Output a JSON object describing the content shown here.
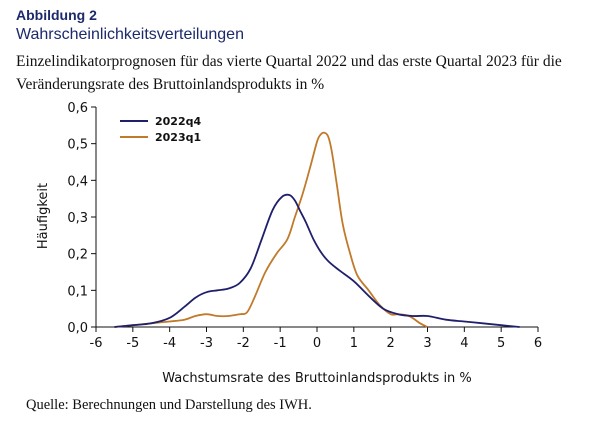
{
  "figure": {
    "label": "Abbildung 2",
    "title": "Wahrscheinlichkeitsverteilungen",
    "subtitle": "Einzelindikatorprognosen für das vierte Quartal 2022 und das erste Quartal 2023 für die Veränderungsrate des Bruttoinlandsprodukts in %",
    "source": "Quelle: Berechnungen und Darstellung des IWH."
  },
  "chart_data": {
    "type": "line",
    "title": "",
    "xlabel": "Wachstumsrate des Bruttoinlandsprodukts in %",
    "ylabel": "Häufigkeit",
    "xlim": [
      -6,
      6
    ],
    "ylim": [
      0,
      0.6
    ],
    "x_ticks": [
      "-6",
      "-5",
      "-4",
      "-3",
      "-2",
      "-1",
      "0",
      "1",
      "2",
      "3",
      "4",
      "5",
      "6"
    ],
    "y_ticks": [
      "0,0",
      "0,1",
      "0,2",
      "0,3",
      "0,4",
      "0,5",
      "0,6"
    ],
    "legend_position": "top-left",
    "grid": false,
    "colors": {
      "2022q4": "#1f1f6b",
      "2023q1": "#c07a2a"
    },
    "series": [
      {
        "name": "2022q4",
        "x": [
          -5.5,
          -5.0,
          -4.5,
          -4.0,
          -3.6,
          -3.3,
          -3.0,
          -2.7,
          -2.4,
          -2.1,
          -1.8,
          -1.5,
          -1.2,
          -0.95,
          -0.75,
          -0.6,
          -0.45,
          -0.3,
          -0.1,
          0.1,
          0.3,
          0.6,
          1.0,
          1.4,
          1.8,
          2.2,
          2.6,
          3.0,
          3.5,
          4.0,
          4.5,
          5.0,
          5.5
        ],
        "values": [
          0.0,
          0.005,
          0.01,
          0.025,
          0.055,
          0.08,
          0.095,
          0.1,
          0.105,
          0.12,
          0.16,
          0.24,
          0.32,
          0.355,
          0.36,
          0.345,
          0.315,
          0.285,
          0.24,
          0.205,
          0.18,
          0.155,
          0.125,
          0.085,
          0.05,
          0.035,
          0.03,
          0.03,
          0.02,
          0.015,
          0.01,
          0.005,
          0.0
        ]
      },
      {
        "name": "2023q1",
        "x": [
          -5.5,
          -5.0,
          -4.5,
          -4.0,
          -3.6,
          -3.3,
          -3.0,
          -2.7,
          -2.4,
          -2.1,
          -1.9,
          -1.7,
          -1.4,
          -1.1,
          -0.8,
          -0.6,
          -0.4,
          -0.2,
          0.0,
          0.1,
          0.2,
          0.3,
          0.4,
          0.55,
          0.7,
          0.9,
          1.1,
          1.4,
          1.7,
          2.0,
          2.2,
          2.5,
          2.8,
          3.0
        ],
        "values": [
          0.0,
          0.005,
          0.01,
          0.015,
          0.02,
          0.03,
          0.035,
          0.03,
          0.03,
          0.035,
          0.04,
          0.08,
          0.15,
          0.2,
          0.24,
          0.3,
          0.36,
          0.43,
          0.505,
          0.525,
          0.53,
          0.52,
          0.48,
          0.38,
          0.28,
          0.2,
          0.14,
          0.1,
          0.06,
          0.035,
          0.035,
          0.03,
          0.01,
          0.0
        ]
      }
    ]
  }
}
